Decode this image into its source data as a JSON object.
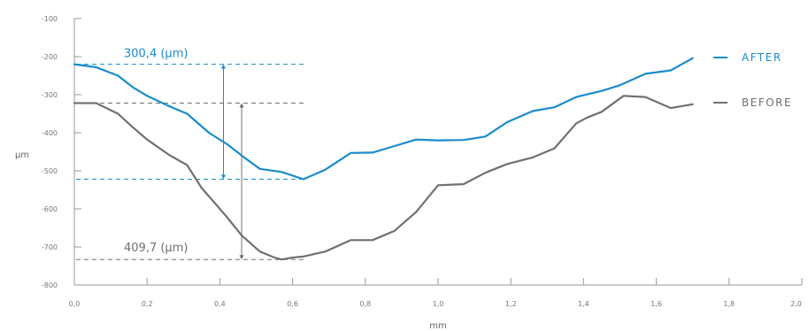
{
  "chart_data": {
    "type": "line",
    "title": "",
    "xlabel": "mm",
    "ylabel": "µm",
    "xlim": [
      0,
      2.0
    ],
    "ylim": [
      -800,
      -100
    ],
    "xticks": [
      "0,0",
      "0,2",
      "0,4",
      "0,6",
      "0,8",
      "1,0",
      "1,2",
      "1,4",
      "1,6",
      "1,8",
      "2,0"
    ],
    "yticks": [
      "-100",
      "-200",
      "-300",
      "-400",
      "-500",
      "-600",
      "-700",
      "-800"
    ],
    "grid": false,
    "legend": "right",
    "series": [
      {
        "name": "AFTER",
        "color": "#1a8ccc",
        "points": [
          [
            0.0,
            -220
          ],
          [
            0.06,
            -228
          ],
          [
            0.12,
            -250
          ],
          [
            0.16,
            -280
          ],
          [
            0.2,
            -303
          ],
          [
            0.26,
            -330
          ],
          [
            0.31,
            -350
          ],
          [
            0.37,
            -400
          ],
          [
            0.42,
            -430
          ],
          [
            0.46,
            -460
          ],
          [
            0.51,
            -495
          ],
          [
            0.57,
            -503
          ],
          [
            0.63,
            -522
          ],
          [
            0.69,
            -497
          ],
          [
            0.76,
            -453
          ],
          [
            0.82,
            -452
          ],
          [
            0.88,
            -435
          ],
          [
            0.94,
            -418
          ],
          [
            1.0,
            -420
          ],
          [
            1.07,
            -419
          ],
          [
            1.13,
            -410
          ],
          [
            1.19,
            -372
          ],
          [
            1.26,
            -343
          ],
          [
            1.32,
            -333
          ],
          [
            1.38,
            -306
          ],
          [
            1.45,
            -290
          ],
          [
            1.5,
            -275
          ],
          [
            1.57,
            -245
          ],
          [
            1.64,
            -236
          ],
          [
            1.7,
            -204
          ]
        ]
      },
      {
        "name": "BEFORE",
        "color": "#707070",
        "points": [
          [
            0.0,
            -322
          ],
          [
            0.06,
            -322
          ],
          [
            0.12,
            -350
          ],
          [
            0.16,
            -385
          ],
          [
            0.2,
            -418
          ],
          [
            0.26,
            -458
          ],
          [
            0.31,
            -485
          ],
          [
            0.35,
            -545
          ],
          [
            0.38,
            -578
          ],
          [
            0.42,
            -622
          ],
          [
            0.46,
            -670
          ],
          [
            0.49,
            -695
          ],
          [
            0.51,
            -712
          ],
          [
            0.55,
            -728
          ],
          [
            0.57,
            -733
          ],
          [
            0.6,
            -728
          ],
          [
            0.63,
            -725
          ],
          [
            0.69,
            -712
          ],
          [
            0.76,
            -682
          ],
          [
            0.82,
            -682
          ],
          [
            0.88,
            -658
          ],
          [
            0.94,
            -608
          ],
          [
            1.0,
            -538
          ],
          [
            1.07,
            -535
          ],
          [
            1.13,
            -505
          ],
          [
            1.19,
            -482
          ],
          [
            1.26,
            -465
          ],
          [
            1.32,
            -441
          ],
          [
            1.38,
            -375
          ],
          [
            1.41,
            -360
          ],
          [
            1.45,
            -345
          ],
          [
            1.51,
            -303
          ],
          [
            1.57,
            -306
          ],
          [
            1.64,
            -335
          ],
          [
            1.7,
            -325
          ]
        ]
      }
    ],
    "annotations": [
      {
        "text": "300,4 (µm)",
        "color": "#1a8ccc",
        "top": -220,
        "bottom": -522,
        "arrow_x": 0.41,
        "guide_x_end": 0.64
      },
      {
        "text": "409,7 (µm)",
        "color": "#707070",
        "top": -322,
        "bottom": -733,
        "arrow_x": 0.46,
        "guide_x_end": 0.64
      }
    ]
  }
}
